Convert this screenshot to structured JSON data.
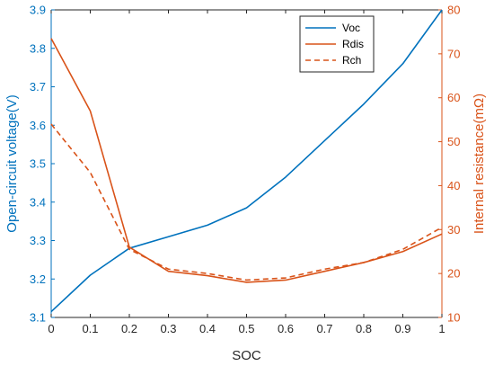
{
  "chart_data": {
    "type": "line",
    "xlabel": "SOC",
    "ylabel_left": "Open-circuit voltage(V)",
    "ylabel_right": "Internal resistance(mΩ)",
    "x": [
      0,
      0.1,
      0.2,
      0.3,
      0.4,
      0.5,
      0.6,
      0.7,
      0.8,
      0.9,
      1
    ],
    "xlim": [
      0,
      1
    ],
    "ylim_left": [
      3.1,
      3.9
    ],
    "ylim_right": [
      10,
      80
    ],
    "x_ticks": [
      "0",
      "0.1",
      "0.2",
      "0.3",
      "0.4",
      "0.5",
      "0.6",
      "0.7",
      "0.8",
      "0.9",
      "1"
    ],
    "y_left_ticks": [
      "3.1",
      "3.2",
      "3.3",
      "3.4",
      "3.5",
      "3.6",
      "3.7",
      "3.8",
      "3.9"
    ],
    "y_right_ticks": [
      "10",
      "20",
      "30",
      "40",
      "50",
      "60",
      "70",
      "80"
    ],
    "grid": false,
    "legend_position": "top-right",
    "series": [
      {
        "name": "Voc",
        "axis": "left",
        "color": "#0072BD",
        "dash": "solid",
        "values": [
          3.115,
          3.21,
          3.28,
          3.31,
          3.34,
          3.385,
          3.465,
          3.56,
          3.655,
          3.76,
          3.9
        ]
      },
      {
        "name": "Rdis",
        "axis": "right",
        "color": "#D95319",
        "dash": "solid",
        "values": [
          73.5,
          57,
          26,
          20.5,
          19.5,
          18,
          18.5,
          20.5,
          22.5,
          25,
          29
        ]
      },
      {
        "name": "Rch",
        "axis": "right",
        "color": "#D95319",
        "dash": "dashed",
        "values": [
          54,
          43,
          25.5,
          21,
          20,
          18.5,
          19,
          21,
          22.5,
          25.5,
          30.5
        ]
      }
    ]
  },
  "colors": {
    "left_axis": "#0072BD",
    "right_axis": "#D95319",
    "frame": "#262626"
  }
}
